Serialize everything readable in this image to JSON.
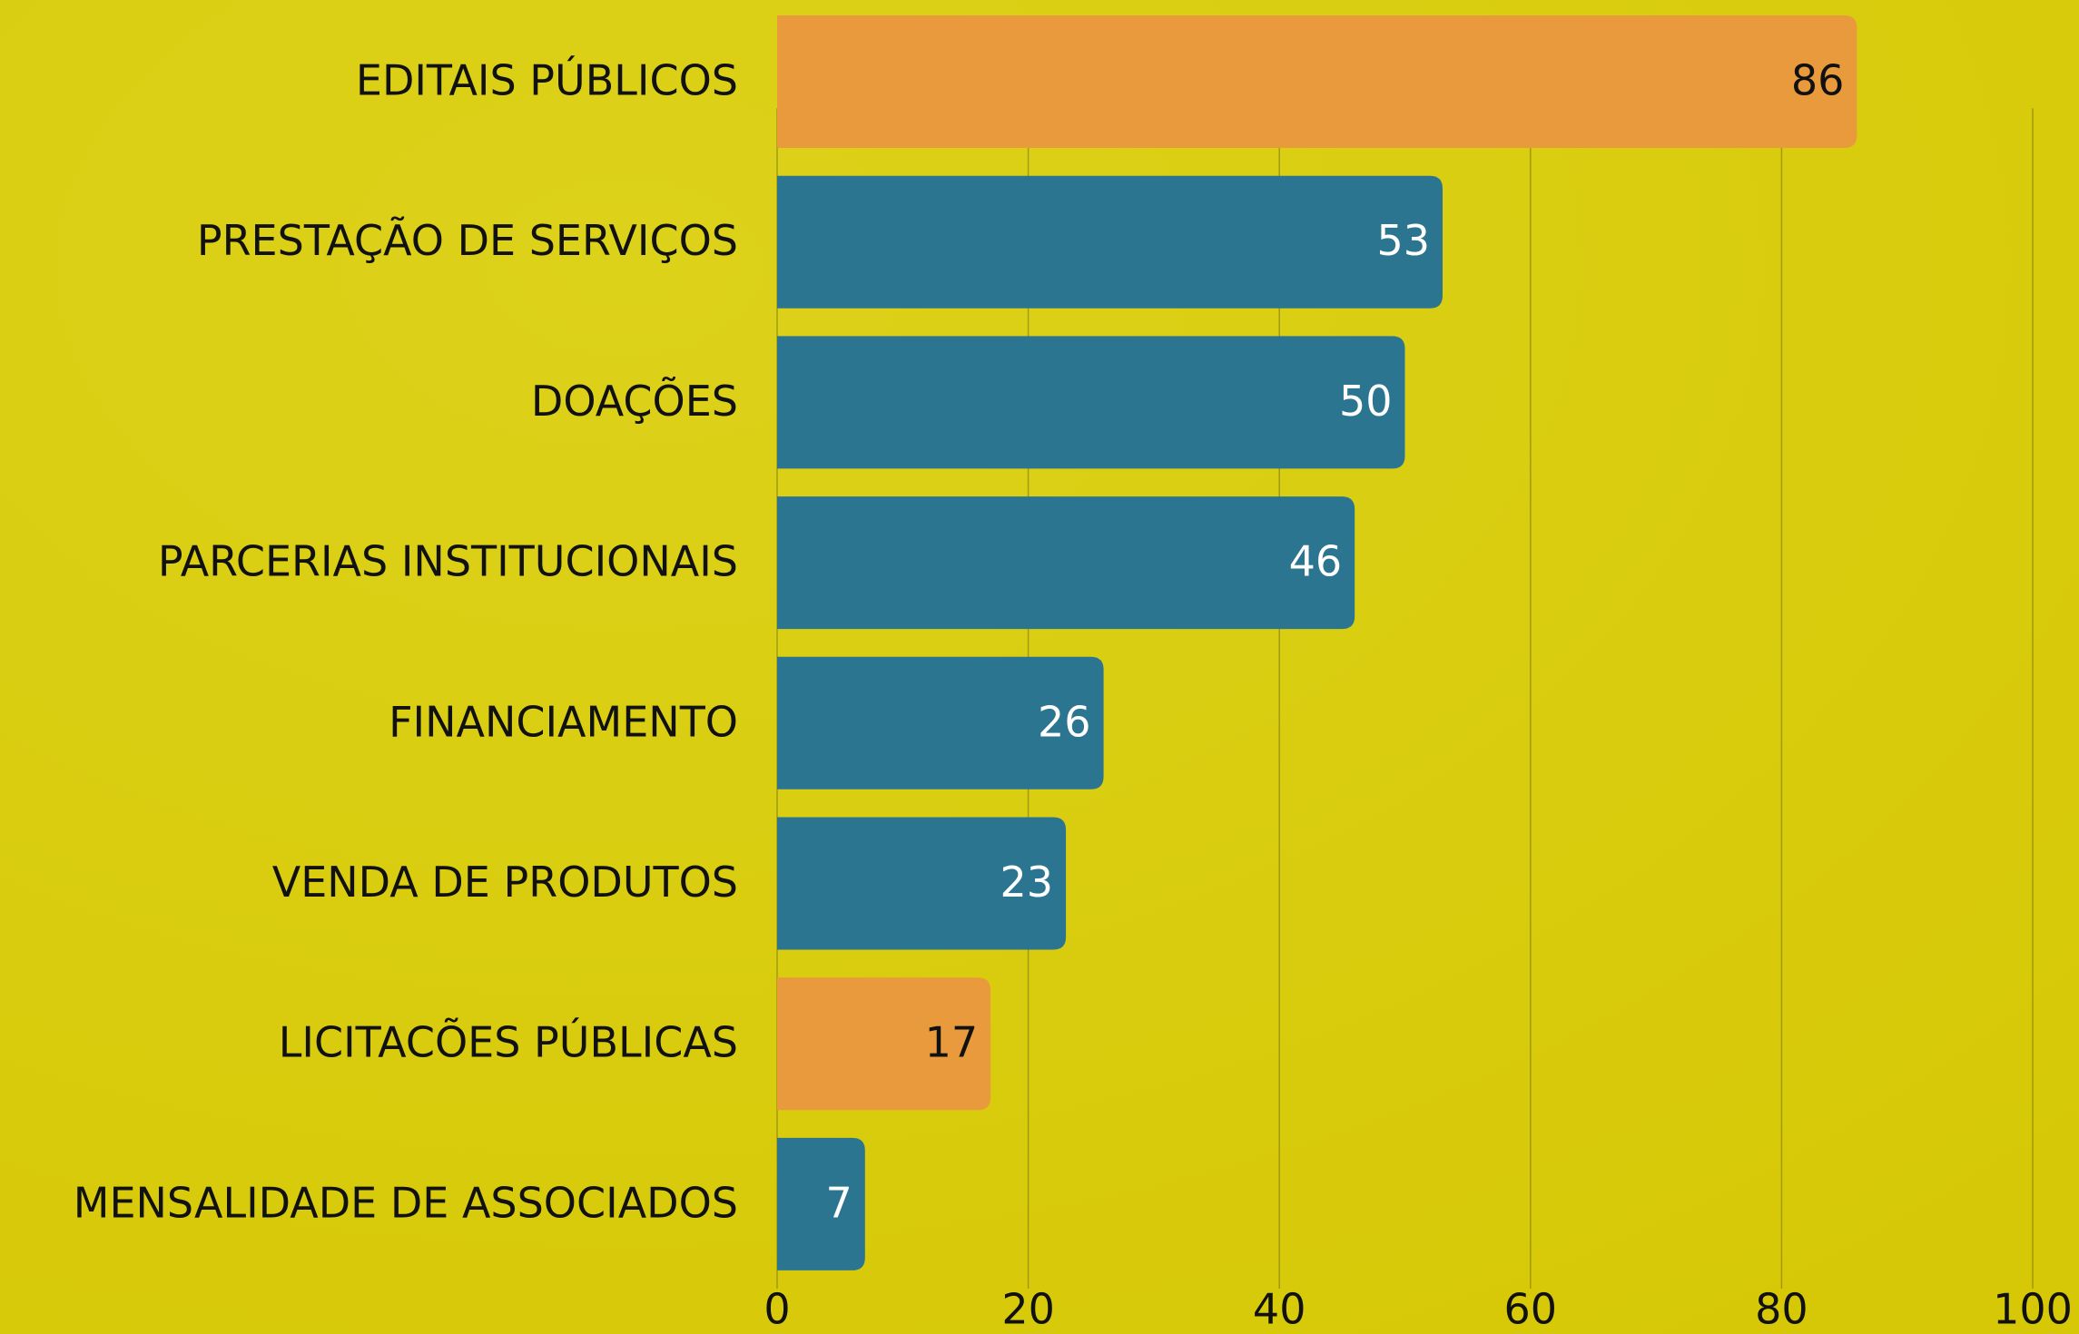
{
  "chart_data": {
    "type": "bar",
    "orientation": "horizontal",
    "categories": [
      "EDITAIS PÚBLICOS",
      "PRESTAÇÃO DE SERVIÇOS",
      "DOAÇÕES",
      "PARCERIAS INSTITUCIONAIS",
      "FINANCIAMENTO",
      "VENDA DE PRODUTOS",
      "LICITACÕES PÚBLICAS",
      "MENSALIDADE DE ASSOCIADOS"
    ],
    "values": [
      86,
      53,
      50,
      46,
      26,
      23,
      17,
      7
    ],
    "colors": [
      "#e89a3c",
      "#2b7590",
      "#2b7590",
      "#2b7590",
      "#2b7590",
      "#2b7590",
      "#e89a3c",
      "#2b7590"
    ],
    "xlim": [
      0,
      100
    ],
    "xticks": [
      0,
      20,
      40,
      60,
      80,
      100
    ],
    "grid": true
  }
}
